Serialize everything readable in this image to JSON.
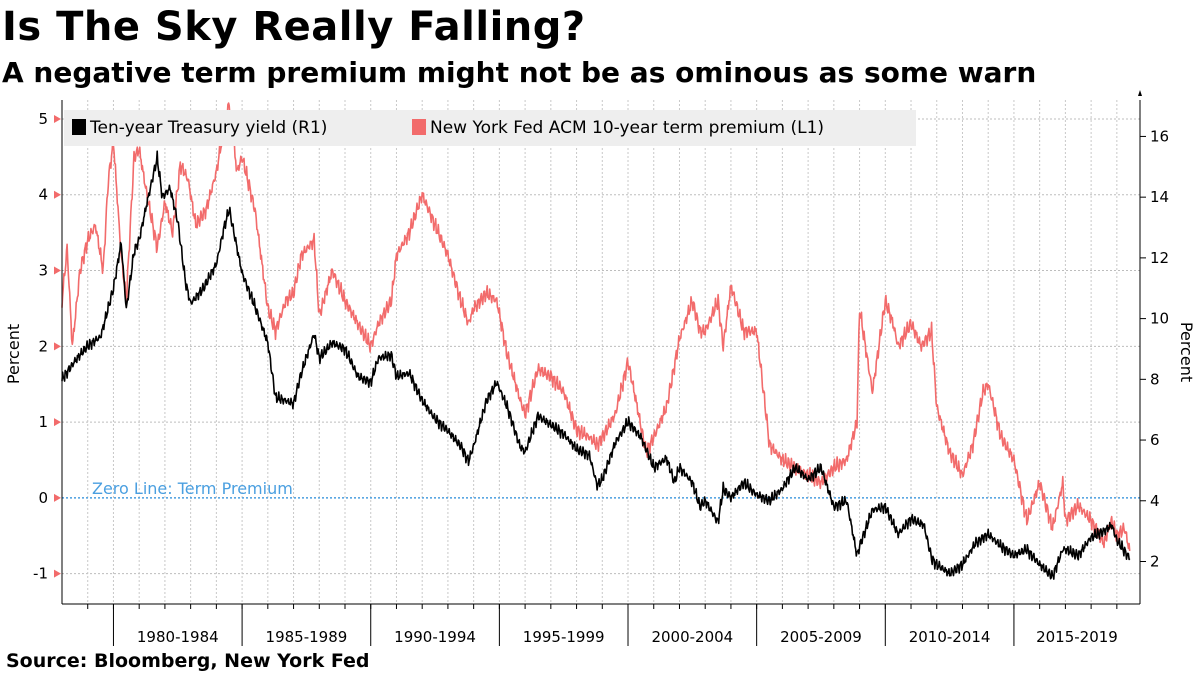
{
  "title": "Is The Sky Really Falling?",
  "subtitle": "A negative term premium might not be as ominous as some warn",
  "source": "Source: Bloomberg, New York Fed",
  "colors": {
    "yield": "#000000",
    "premium": "#f26b6b",
    "zero_line": "#4a9fe0",
    "legend_bg": "#eeeeee"
  },
  "chart_data": {
    "type": "line",
    "title": "Is The Sky Really Falling?",
    "subtitle": "A negative term premium might not be as ominous as some warn",
    "xlabel": "",
    "ylabel_left": "Percent",
    "ylabel_right": "Percent",
    "ylim_left": [
      -1.4,
      5.25
    ],
    "ylim_right": [
      0.6,
      17.2
    ],
    "xlim": [
      1978,
      2019.9
    ],
    "left_ticks": [
      -1,
      0,
      1,
      2,
      3,
      4,
      5
    ],
    "right_ticks": [
      2,
      4,
      6,
      8,
      10,
      12,
      14,
      16
    ],
    "x_groups": [
      {
        "label": "1980-1984",
        "start": 1980,
        "end": 1985
      },
      {
        "label": "1985-1989",
        "start": 1985,
        "end": 1990
      },
      {
        "label": "1990-1994",
        "start": 1990,
        "end": 1995
      },
      {
        "label": "1995-1999",
        "start": 1995,
        "end": 2000
      },
      {
        "label": "2000-2004",
        "start": 2000,
        "end": 2005
      },
      {
        "label": "2005-2009",
        "start": 2005,
        "end": 2010
      },
      {
        "label": "2010-2014",
        "start": 2010,
        "end": 2015
      },
      {
        "label": "2015-2019",
        "start": 2015,
        "end": 2020
      }
    ],
    "legend_position": "top-left",
    "annotation": {
      "text": "Zero Line: Term Premium",
      "value": 0
    },
    "series": [
      {
        "name": "Ten-year Treasury yield (R1)",
        "axis": "right",
        "x": [
          1978.0,
          1978.5,
          1979.0,
          1979.5,
          1980.0,
          1980.3,
          1980.5,
          1980.8,
          1981.0,
          1981.3,
          1981.7,
          1981.9,
          1982.2,
          1982.5,
          1982.8,
          1983.0,
          1983.5,
          1984.0,
          1984.3,
          1984.5,
          1985.0,
          1985.5,
          1986.0,
          1986.3,
          1986.7,
          1987.0,
          1987.3,
          1987.8,
          1988.0,
          1988.5,
          1989.0,
          1989.5,
          1990.0,
          1990.3,
          1990.8,
          1991.0,
          1991.5,
          1992.0,
          1992.5,
          1993.0,
          1993.5,
          1993.8,
          1994.0,
          1994.5,
          1994.9,
          1995.3,
          1995.8,
          1996.0,
          1996.5,
          1997.0,
          1997.5,
          1998.0,
          1998.5,
          1998.8,
          1999.0,
          1999.5,
          2000.0,
          2000.5,
          2001.0,
          2001.5,
          2001.8,
          2002.0,
          2002.5,
          2002.8,
          2003.0,
          2003.5,
          2003.7,
          2004.0,
          2004.5,
          2005.0,
          2005.5,
          2006.0,
          2006.5,
          2007.0,
          2007.5,
          2008.0,
          2008.5,
          2008.9,
          2009.0,
          2009.5,
          2010.0,
          2010.5,
          2011.0,
          2011.5,
          2011.8,
          2012.0,
          2012.5,
          2013.0,
          2013.5,
          2014.0,
          2014.5,
          2015.0,
          2015.5,
          2016.0,
          2016.5,
          2016.9,
          2017.0,
          2017.5,
          2018.0,
          2018.5,
          2018.8,
          2019.0,
          2019.5
        ],
        "values": [
          8.0,
          8.6,
          9.1,
          9.4,
          11.0,
          12.5,
          10.3,
          12.2,
          12.6,
          13.8,
          15.3,
          14.0,
          14.3,
          13.2,
          11.2,
          10.5,
          11.0,
          11.8,
          13.0,
          13.6,
          11.5,
          10.4,
          9.2,
          7.4,
          7.3,
          7.2,
          8.2,
          9.5,
          8.7,
          9.2,
          9.0,
          8.1,
          7.9,
          8.7,
          8.8,
          8.1,
          8.2,
          7.3,
          6.7,
          6.3,
          5.8,
          5.3,
          5.8,
          7.3,
          7.9,
          7.1,
          5.8,
          5.6,
          6.8,
          6.5,
          6.2,
          5.7,
          5.5,
          4.5,
          4.7,
          5.9,
          6.6,
          6.1,
          5.1,
          5.4,
          4.6,
          5.1,
          4.6,
          3.8,
          4.0,
          3.3,
          4.4,
          4.1,
          4.6,
          4.2,
          4.0,
          4.4,
          5.1,
          4.7,
          5.1,
          3.8,
          4.0,
          2.2,
          2.5,
          3.7,
          3.8,
          2.9,
          3.4,
          3.2,
          2.1,
          1.9,
          1.6,
          1.9,
          2.6,
          2.9,
          2.5,
          2.2,
          2.4,
          1.9,
          1.5,
          2.4,
          2.4,
          2.2,
          2.8,
          3.0,
          3.2,
          2.7,
          2.1
        ]
      },
      {
        "name": "New York Fed ACM 10-year term premium (L1)",
        "axis": "left",
        "x": [
          1978.0,
          1978.2,
          1978.4,
          1978.7,
          1979.0,
          1979.3,
          1979.6,
          1979.8,
          1980.0,
          1980.3,
          1980.5,
          1980.8,
          1981.0,
          1981.3,
          1981.7,
          1982.0,
          1982.3,
          1982.6,
          1982.9,
          1983.2,
          1983.6,
          1984.0,
          1984.3,
          1984.5,
          1984.8,
          1985.0,
          1985.5,
          1986.0,
          1986.3,
          1986.7,
          1987.0,
          1987.3,
          1987.8,
          1988.0,
          1988.5,
          1989.0,
          1989.5,
          1990.0,
          1990.3,
          1990.8,
          1991.0,
          1991.5,
          1992.0,
          1992.5,
          1993.0,
          1993.5,
          1993.8,
          1994.0,
          1994.5,
          1994.9,
          1995.3,
          1995.8,
          1996.0,
          1996.5,
          1997.0,
          1997.5,
          1998.0,
          1998.5,
          1998.8,
          1999.0,
          1999.5,
          2000.0,
          2000.3,
          2000.7,
          2001.0,
          2001.5,
          2002.0,
          2002.5,
          2002.8,
          2003.0,
          2003.5,
          2003.7,
          2004.0,
          2004.5,
          2005.0,
          2005.5,
          2006.0,
          2006.5,
          2007.0,
          2007.5,
          2008.0,
          2008.5,
          2008.9,
          2009.0,
          2009.5,
          2010.0,
          2010.3,
          2010.5,
          2011.0,
          2011.4,
          2011.8,
          2012.0,
          2012.5,
          2013.0,
          2013.4,
          2013.8,
          2014.0,
          2014.5,
          2015.0,
          2015.5,
          2016.0,
          2016.5,
          2016.9,
          2017.0,
          2017.5,
          2018.0,
          2018.5,
          2018.8,
          2019.0,
          2019.3,
          2019.5
        ],
        "values": [
          2.6,
          3.3,
          2.0,
          3.0,
          3.4,
          3.6,
          3.0,
          4.2,
          4.7,
          3.2,
          2.6,
          4.5,
          4.6,
          4.0,
          3.3,
          3.9,
          3.5,
          4.4,
          4.2,
          3.6,
          3.8,
          4.3,
          4.9,
          5.2,
          4.3,
          4.5,
          3.8,
          2.5,
          2.2,
          2.6,
          2.7,
          3.2,
          3.4,
          2.4,
          3.0,
          2.6,
          2.3,
          2.0,
          2.3,
          2.6,
          3.2,
          3.5,
          4.0,
          3.6,
          3.2,
          2.6,
          2.3,
          2.5,
          2.7,
          2.6,
          1.9,
          1.3,
          1.1,
          1.7,
          1.6,
          1.4,
          0.9,
          0.8,
          0.7,
          0.8,
          1.1,
          1.8,
          1.3,
          0.6,
          0.8,
          1.2,
          2.1,
          2.6,
          2.2,
          2.2,
          2.6,
          2.0,
          2.8,
          2.2,
          2.2,
          0.7,
          0.5,
          0.4,
          0.3,
          0.2,
          0.4,
          0.5,
          1.0,
          2.5,
          1.4,
          2.6,
          2.3,
          2.0,
          2.3,
          2.0,
          2.2,
          1.2,
          0.6,
          0.3,
          0.7,
          1.4,
          1.5,
          0.8,
          0.5,
          -0.3,
          0.2,
          -0.4,
          0.2,
          -0.3,
          -0.1,
          -0.3,
          -0.6,
          -0.3,
          -0.5,
          -0.4,
          -0.7
        ]
      }
    ]
  }
}
